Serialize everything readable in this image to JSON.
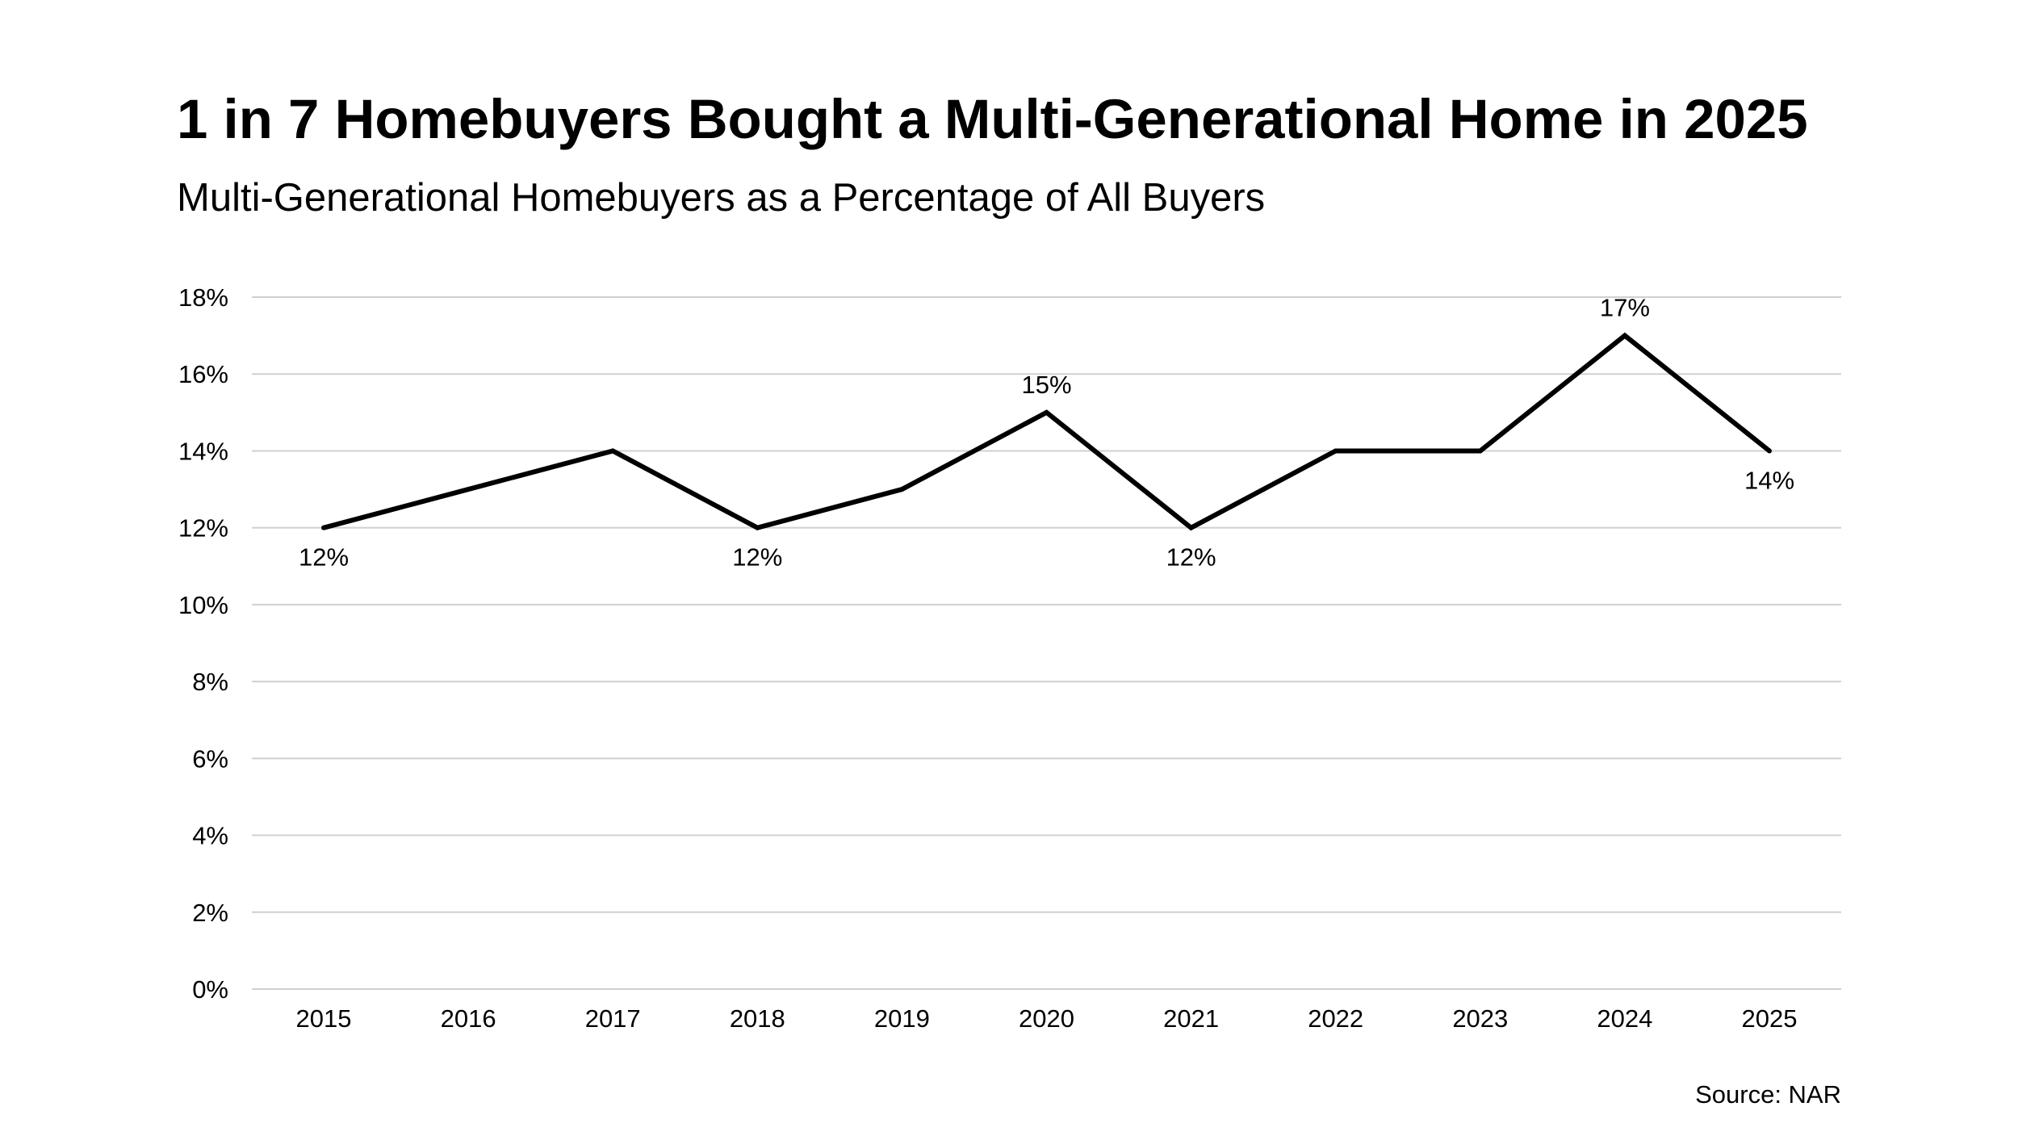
{
  "header": {
    "title": "1 in 7 Homebuyers Bought a Multi-Generational Home in 2025",
    "subtitle": "Multi-Generational Homebuyers as a Percentage of All Buyers"
  },
  "footer": {
    "source": "Source: NAR"
  },
  "colors": {
    "line": "#000000",
    "grid": "#d0d0d0",
    "text": "#000000",
    "background": "#ffffff"
  },
  "chart_data": {
    "type": "line",
    "title": "1 in 7 Homebuyers Bought a Multi-Generational Home in 2025",
    "subtitle": "Multi-Generational Homebuyers as a Percentage of All Buyers",
    "xlabel": "",
    "ylabel": "",
    "categories": [
      "2015",
      "2016",
      "2017",
      "2018",
      "2019",
      "2020",
      "2021",
      "2022",
      "2023",
      "2024",
      "2025"
    ],
    "series": [
      {
        "name": "Multi-Generational Homebuyers",
        "values": [
          12,
          13,
          14,
          12,
          13,
          15,
          12,
          14,
          14,
          17,
          14
        ]
      }
    ],
    "ylim": [
      0,
      18
    ],
    "yticks": [
      0,
      2,
      4,
      6,
      8,
      10,
      12,
      14,
      16,
      18
    ],
    "ytick_labels": [
      "0%",
      "2%",
      "4%",
      "6%",
      "8%",
      "10%",
      "12%",
      "14%",
      "16%",
      "18%"
    ],
    "grid": true,
    "legend": "none",
    "annotations": [
      {
        "category": "2015",
        "value": 12,
        "label": "12%",
        "position": "below"
      },
      {
        "category": "2018",
        "value": 12,
        "label": "12%",
        "position": "below"
      },
      {
        "category": "2020",
        "value": 15,
        "label": "15%",
        "position": "above"
      },
      {
        "category": "2021",
        "value": 12,
        "label": "12%",
        "position": "below"
      },
      {
        "category": "2024",
        "value": 17,
        "label": "17%",
        "position": "above"
      },
      {
        "category": "2025",
        "value": 14,
        "label": "14%",
        "position": "below"
      }
    ]
  }
}
